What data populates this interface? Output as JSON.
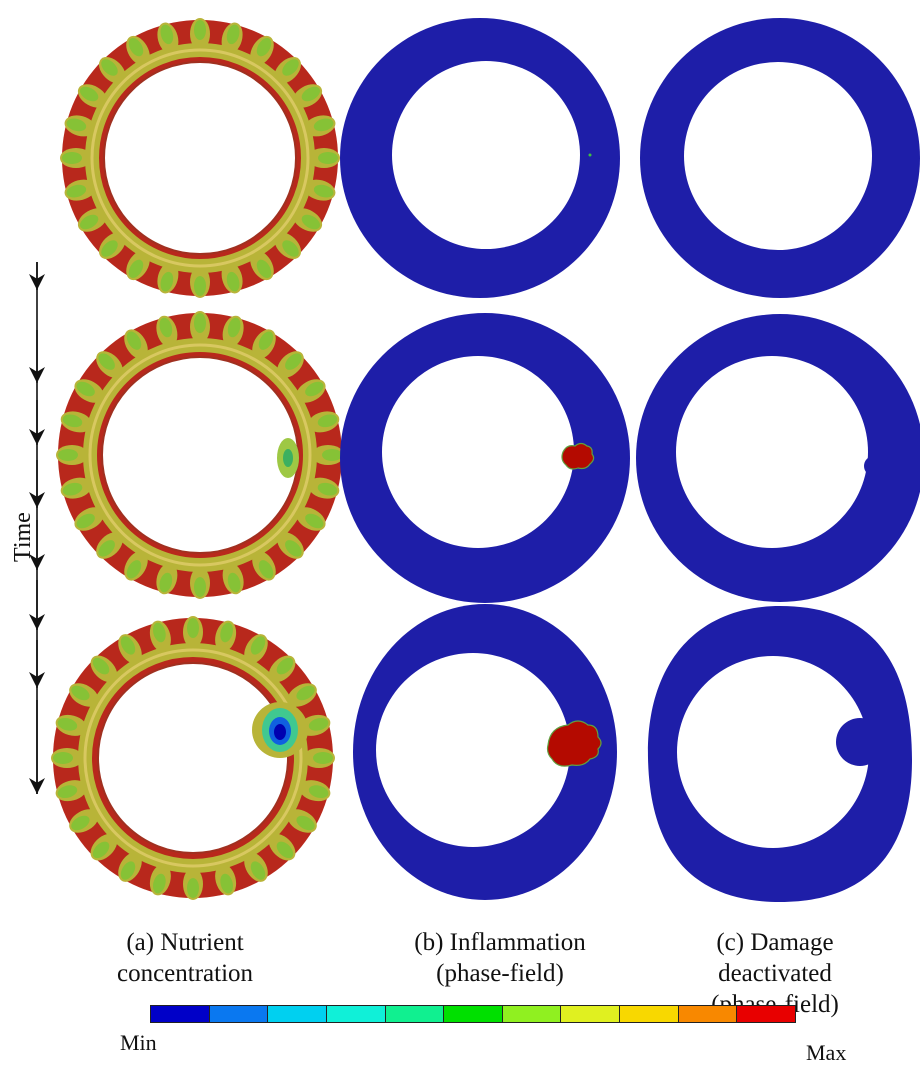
{
  "time_label": "Time",
  "columns": [
    {
      "id": "a",
      "caption_lines": [
        "(a) Nutrient",
        "concentration"
      ]
    },
    {
      "id": "b",
      "caption_lines": [
        "(b) Inflammation",
        "(phase-field)"
      ]
    },
    {
      "id": "c",
      "caption_lines": [
        "(c) Damage",
        "deactivated",
        "(phase-field)"
      ]
    }
  ],
  "colorbar": {
    "min_label": "Min",
    "max_label": "Max",
    "colors": [
      "#0000c8",
      "#0a78f0",
      "#00d0f0",
      "#10f0d8",
      "#10f090",
      "#00e000",
      "#90f020",
      "#e0f020",
      "#f8d800",
      "#f88800",
      "#e80000"
    ]
  },
  "colors": {
    "phase_field_blue": "#1e1ea8",
    "nutrient_red": "#b8281c",
    "nutrient_olive": "#b8b438",
    "nutrient_green": "#86c236",
    "inflammation_red": "#b40a00"
  }
}
